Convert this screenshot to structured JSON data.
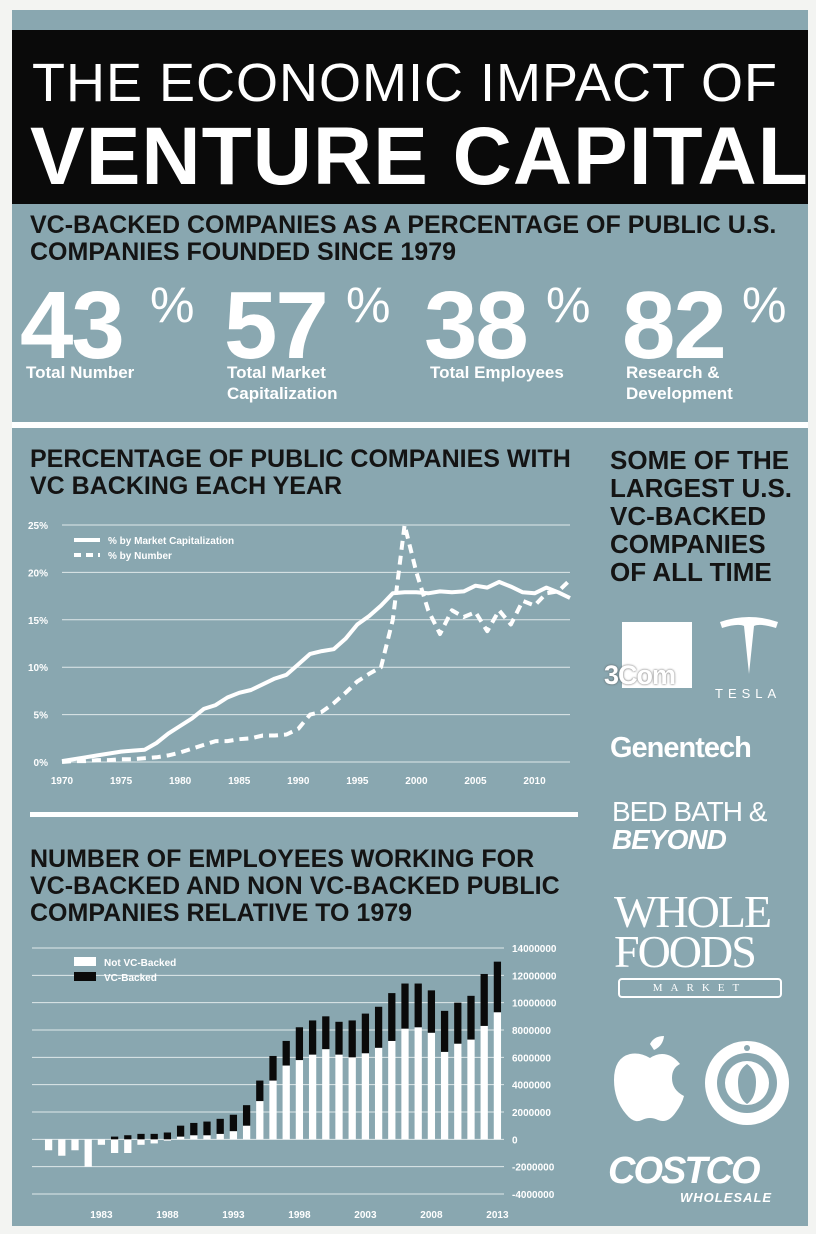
{
  "title": {
    "line1": "THE ECONOMIC IMPACT OF",
    "line2": "VENTURE CAPITAL"
  },
  "stats": {
    "heading": [
      "VC-BACKED COMPANIES AS A PERCENTAGE OF PUBLIC U.S.",
      "COMPANIES FOUNDED SINCE 1979"
    ],
    "items": [
      {
        "value": "43",
        "unit": "%",
        "label": [
          "Total Number"
        ]
      },
      {
        "value": "57",
        "unit": "%",
        "label": [
          "Total Market",
          "Capitalization"
        ]
      },
      {
        "value": "38",
        "unit": "%",
        "label": [
          "Total Employees"
        ]
      },
      {
        "value": "82",
        "unit": "%",
        "label": [
          "Research &",
          "Development"
        ]
      }
    ]
  },
  "line_section": {
    "heading": [
      "PERCENTAGE OF PUBLIC COMPANIES WITH",
      "VC BACKING EACH YEAR"
    ]
  },
  "bar_section": {
    "heading": [
      "NUMBER OF EMPLOYEES WORKING FOR",
      "VC-BACKED AND NON VC-BACKED PUBLIC",
      "COMPANIES RELATIVE TO 1979"
    ]
  },
  "companies": {
    "heading": [
      "SOME OF THE",
      "LARGEST U.S.",
      "VC-BACKED",
      "COMPANIES",
      "OF ALL TIME"
    ],
    "logos": {
      "3com": "3Com",
      "tesla": "TESLA",
      "genentech": "Genentech",
      "bbb1": "BED BATH &",
      "bbb2": "BEYOND",
      "wf1": "WHOLE",
      "wf2": "FOODS",
      "wf3": "MARKET",
      "costco1": "COSTCO",
      "costco2": "WHOLESALE"
    },
    "icons": [
      "apple-icon",
      "starbucks-icon",
      "tesla-icon"
    ]
  },
  "colors": {
    "panel": "#89a7b0",
    "title_bg": "#0a0a0a",
    "heading": "#141414",
    "white": "#ffffff",
    "bar_dark": "#0a0a0a"
  },
  "chart_data": [
    {
      "type": "line",
      "xlim": [
        1970,
        2013
      ],
      "ylim": [
        0,
        25
      ],
      "x_ticks": [
        1970,
        1975,
        1980,
        1985,
        1990,
        1995,
        2000,
        2005,
        2010
      ],
      "y_ticks": [
        0,
        5,
        10,
        15,
        20,
        25
      ],
      "y_tick_labels": [
        "0%",
        "5%",
        "10%",
        "15%",
        "20%",
        "25%"
      ],
      "grid": true,
      "legend": "top-left",
      "series": [
        {
          "name": "% by Market Capitalization",
          "style": "solid",
          "x": [
            1970,
            1971,
            1972,
            1973,
            1974,
            1975,
            1976,
            1977,
            1978,
            1979,
            1980,
            1981,
            1982,
            1983,
            1984,
            1985,
            1986,
            1987,
            1988,
            1989,
            1990,
            1991,
            1992,
            1993,
            1994,
            1995,
            1996,
            1997,
            1998,
            1999,
            2000,
            2001,
            2002,
            2003,
            2004,
            2005,
            2006,
            2007,
            2008,
            2009,
            2010,
            2011,
            2012,
            2013
          ],
          "y": [
            0.1,
            0.3,
            0.5,
            0.7,
            0.9,
            1.1,
            1.2,
            1.3,
            2.0,
            3.0,
            3.8,
            4.6,
            5.6,
            6.0,
            6.8,
            7.3,
            7.6,
            8.2,
            8.8,
            9.2,
            10.3,
            11.4,
            11.7,
            11.9,
            13.0,
            14.5,
            15.4,
            16.5,
            17.8,
            17.9,
            17.9,
            17.8,
            18.0,
            17.9,
            18.0,
            18.6,
            18.4,
            19.0,
            18.5,
            17.9,
            17.8,
            18.4,
            17.9,
            17.3
          ]
        },
        {
          "name": "% by Number",
          "style": "dashed",
          "x": [
            1970,
            1971,
            1972,
            1973,
            1974,
            1975,
            1976,
            1977,
            1978,
            1979,
            1980,
            1981,
            1982,
            1983,
            1984,
            1985,
            1986,
            1987,
            1988,
            1989,
            1990,
            1991,
            1992,
            1993,
            1994,
            1995,
            1996,
            1997,
            1998,
            1999,
            2000,
            2001,
            2002,
            2003,
            2004,
            2005,
            2006,
            2007,
            2008,
            2009,
            2010,
            2011,
            2012,
            2013
          ],
          "y": [
            0.0,
            0.1,
            0.1,
            0.2,
            0.2,
            0.3,
            0.3,
            0.4,
            0.5,
            0.7,
            1.0,
            1.4,
            1.8,
            2.2,
            2.2,
            2.4,
            2.5,
            2.8,
            2.8,
            2.9,
            3.5,
            5.0,
            5.3,
            6.2,
            7.3,
            8.5,
            9.3,
            10.0,
            15.0,
            25.0,
            20.0,
            16.0,
            13.5,
            16.0,
            15.3,
            15.8,
            13.8,
            16.0,
            14.5,
            17.0,
            16.5,
            17.8,
            18.0,
            19.2
          ]
        }
      ]
    },
    {
      "type": "bar",
      "stacked": true,
      "categories": [
        1979,
        1980,
        1981,
        1982,
        1983,
        1984,
        1985,
        1986,
        1987,
        1988,
        1989,
        1990,
        1991,
        1992,
        1993,
        1994,
        1995,
        1996,
        1997,
        1998,
        1999,
        2000,
        2001,
        2002,
        2003,
        2004,
        2005,
        2006,
        2007,
        2008,
        2009,
        2010,
        2011,
        2012,
        2013
      ],
      "x_tick_labels": [
        "1983",
        "1988",
        "1993",
        "1998",
        "2003",
        "2008",
        "2013"
      ],
      "ylim": [
        -4000000,
        14000000
      ],
      "y_ticks": [
        -4000000,
        -2000000,
        0,
        2000000,
        4000000,
        6000000,
        8000000,
        10000000,
        12000000,
        14000000
      ],
      "y_tick_labels": [
        "-4000000",
        "-2000000",
        "0",
        "2000000",
        "4000000",
        "6000000",
        "8000000",
        "10000000",
        "12000000",
        "14000000"
      ],
      "grid": true,
      "legend": "top-left",
      "series": [
        {
          "name": "Not VC-Backed",
          "color": "#ffffff",
          "values": [
            -800000,
            -1200000,
            -800000,
            -2000000,
            -400000,
            -1000000,
            -1000000,
            -400000,
            -300000,
            -100000,
            200000,
            300000,
            300000,
            400000,
            600000,
            1000000,
            2800000,
            4300000,
            5400000,
            5800000,
            6200000,
            6600000,
            6200000,
            6000000,
            6300000,
            6700000,
            7200000,
            8100000,
            8200000,
            7800000,
            6400000,
            7000000,
            7300000,
            8300000,
            9300000
          ]
        },
        {
          "name": "VC-Backed",
          "color": "#0a0a0a",
          "values": [
            0,
            0,
            0,
            0,
            0,
            200000,
            300000,
            400000,
            400000,
            500000,
            800000,
            900000,
            1000000,
            1100000,
            1200000,
            1500000,
            1500000,
            1800000,
            1800000,
            2400000,
            2500000,
            2400000,
            2400000,
            2700000,
            2900000,
            3000000,
            3500000,
            3300000,
            3200000,
            3100000,
            3000000,
            3000000,
            3200000,
            3800000,
            3700000
          ]
        }
      ]
    }
  ]
}
